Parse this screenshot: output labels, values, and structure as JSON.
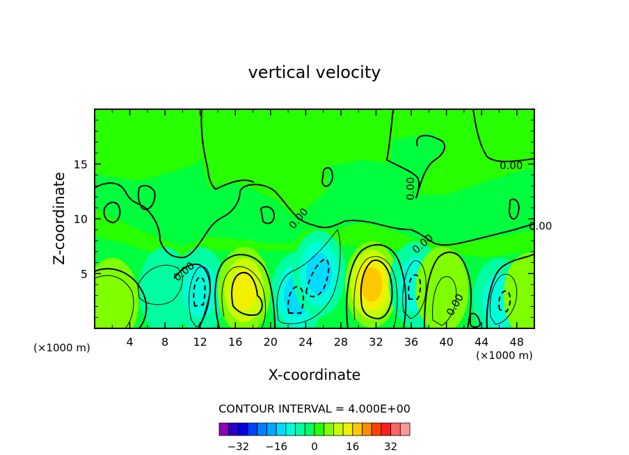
{
  "figure": {
    "title": "vertical velocity",
    "xlabel": "X-coordinate",
    "ylabel": "Z-coordinate",
    "x_unit_left": "(×1000 m)",
    "x_unit_right": "(×1000 m)",
    "contour_interval_text": "CONTOUR INTERVAL = 4.000E+00",
    "contour_labels": [
      "0.00",
      "0.00",
      "0.00",
      "0.00",
      "0.00",
      "0.00",
      "0.00"
    ]
  },
  "chart_data": {
    "type": "heatmap",
    "title": "vertical velocity",
    "xlabel": "X-coordinate",
    "ylabel": "Z-coordinate",
    "xlim": [
      0,
      50
    ],
    "ylim": [
      0,
      20
    ],
    "x_ticks": [
      4,
      8,
      12,
      16,
      20,
      24,
      28,
      32,
      36,
      40,
      44,
      48
    ],
    "y_ticks": [
      5,
      10,
      15
    ],
    "contour_interval": 4.0,
    "grid": false,
    "features": [
      {
        "x": 2,
        "z": 2.5,
        "value": 6,
        "sign": "up"
      },
      {
        "x": 8,
        "z": 3.5,
        "value": -6,
        "sign": "down"
      },
      {
        "x": 12,
        "z": 3.5,
        "value": -9,
        "sign": "down"
      },
      {
        "x": 17,
        "z": 3.5,
        "value": 14,
        "sign": "up"
      },
      {
        "x": 23,
        "z": 3,
        "value": -12,
        "sign": "down"
      },
      {
        "x": 25.5,
        "z": 5,
        "value": -13,
        "sign": "down"
      },
      {
        "x": 31.5,
        "z": 4,
        "value": 17,
        "sign": "up"
      },
      {
        "x": 36.5,
        "z": 4,
        "value": -10,
        "sign": "down"
      },
      {
        "x": 39.5,
        "z": 3.5,
        "value": 7,
        "sign": "up"
      },
      {
        "x": 46,
        "z": 2.5,
        "value": -10,
        "sign": "down"
      },
      {
        "x": 49.5,
        "z": 3,
        "value": 5,
        "sign": "up"
      }
    ],
    "colorbar": {
      "ticks": [
        -32,
        -16,
        0,
        16,
        32
      ],
      "tick_labels": [
        "−32",
        "−16",
        "0",
        "16",
        "32"
      ],
      "colors": [
        "#8c00b4",
        "#2800c8",
        "#0000e6",
        "#0040ff",
        "#0080ff",
        "#00a8ff",
        "#00dcff",
        "#00ffd8",
        "#00ffa0",
        "#00ff64",
        "#28ff00",
        "#80ff00",
        "#c8ff00",
        "#f0f000",
        "#ffc800",
        "#ff8c00",
        "#ff4000",
        "#ff1e1e",
        "#ff6464",
        "#ff9696"
      ]
    }
  }
}
